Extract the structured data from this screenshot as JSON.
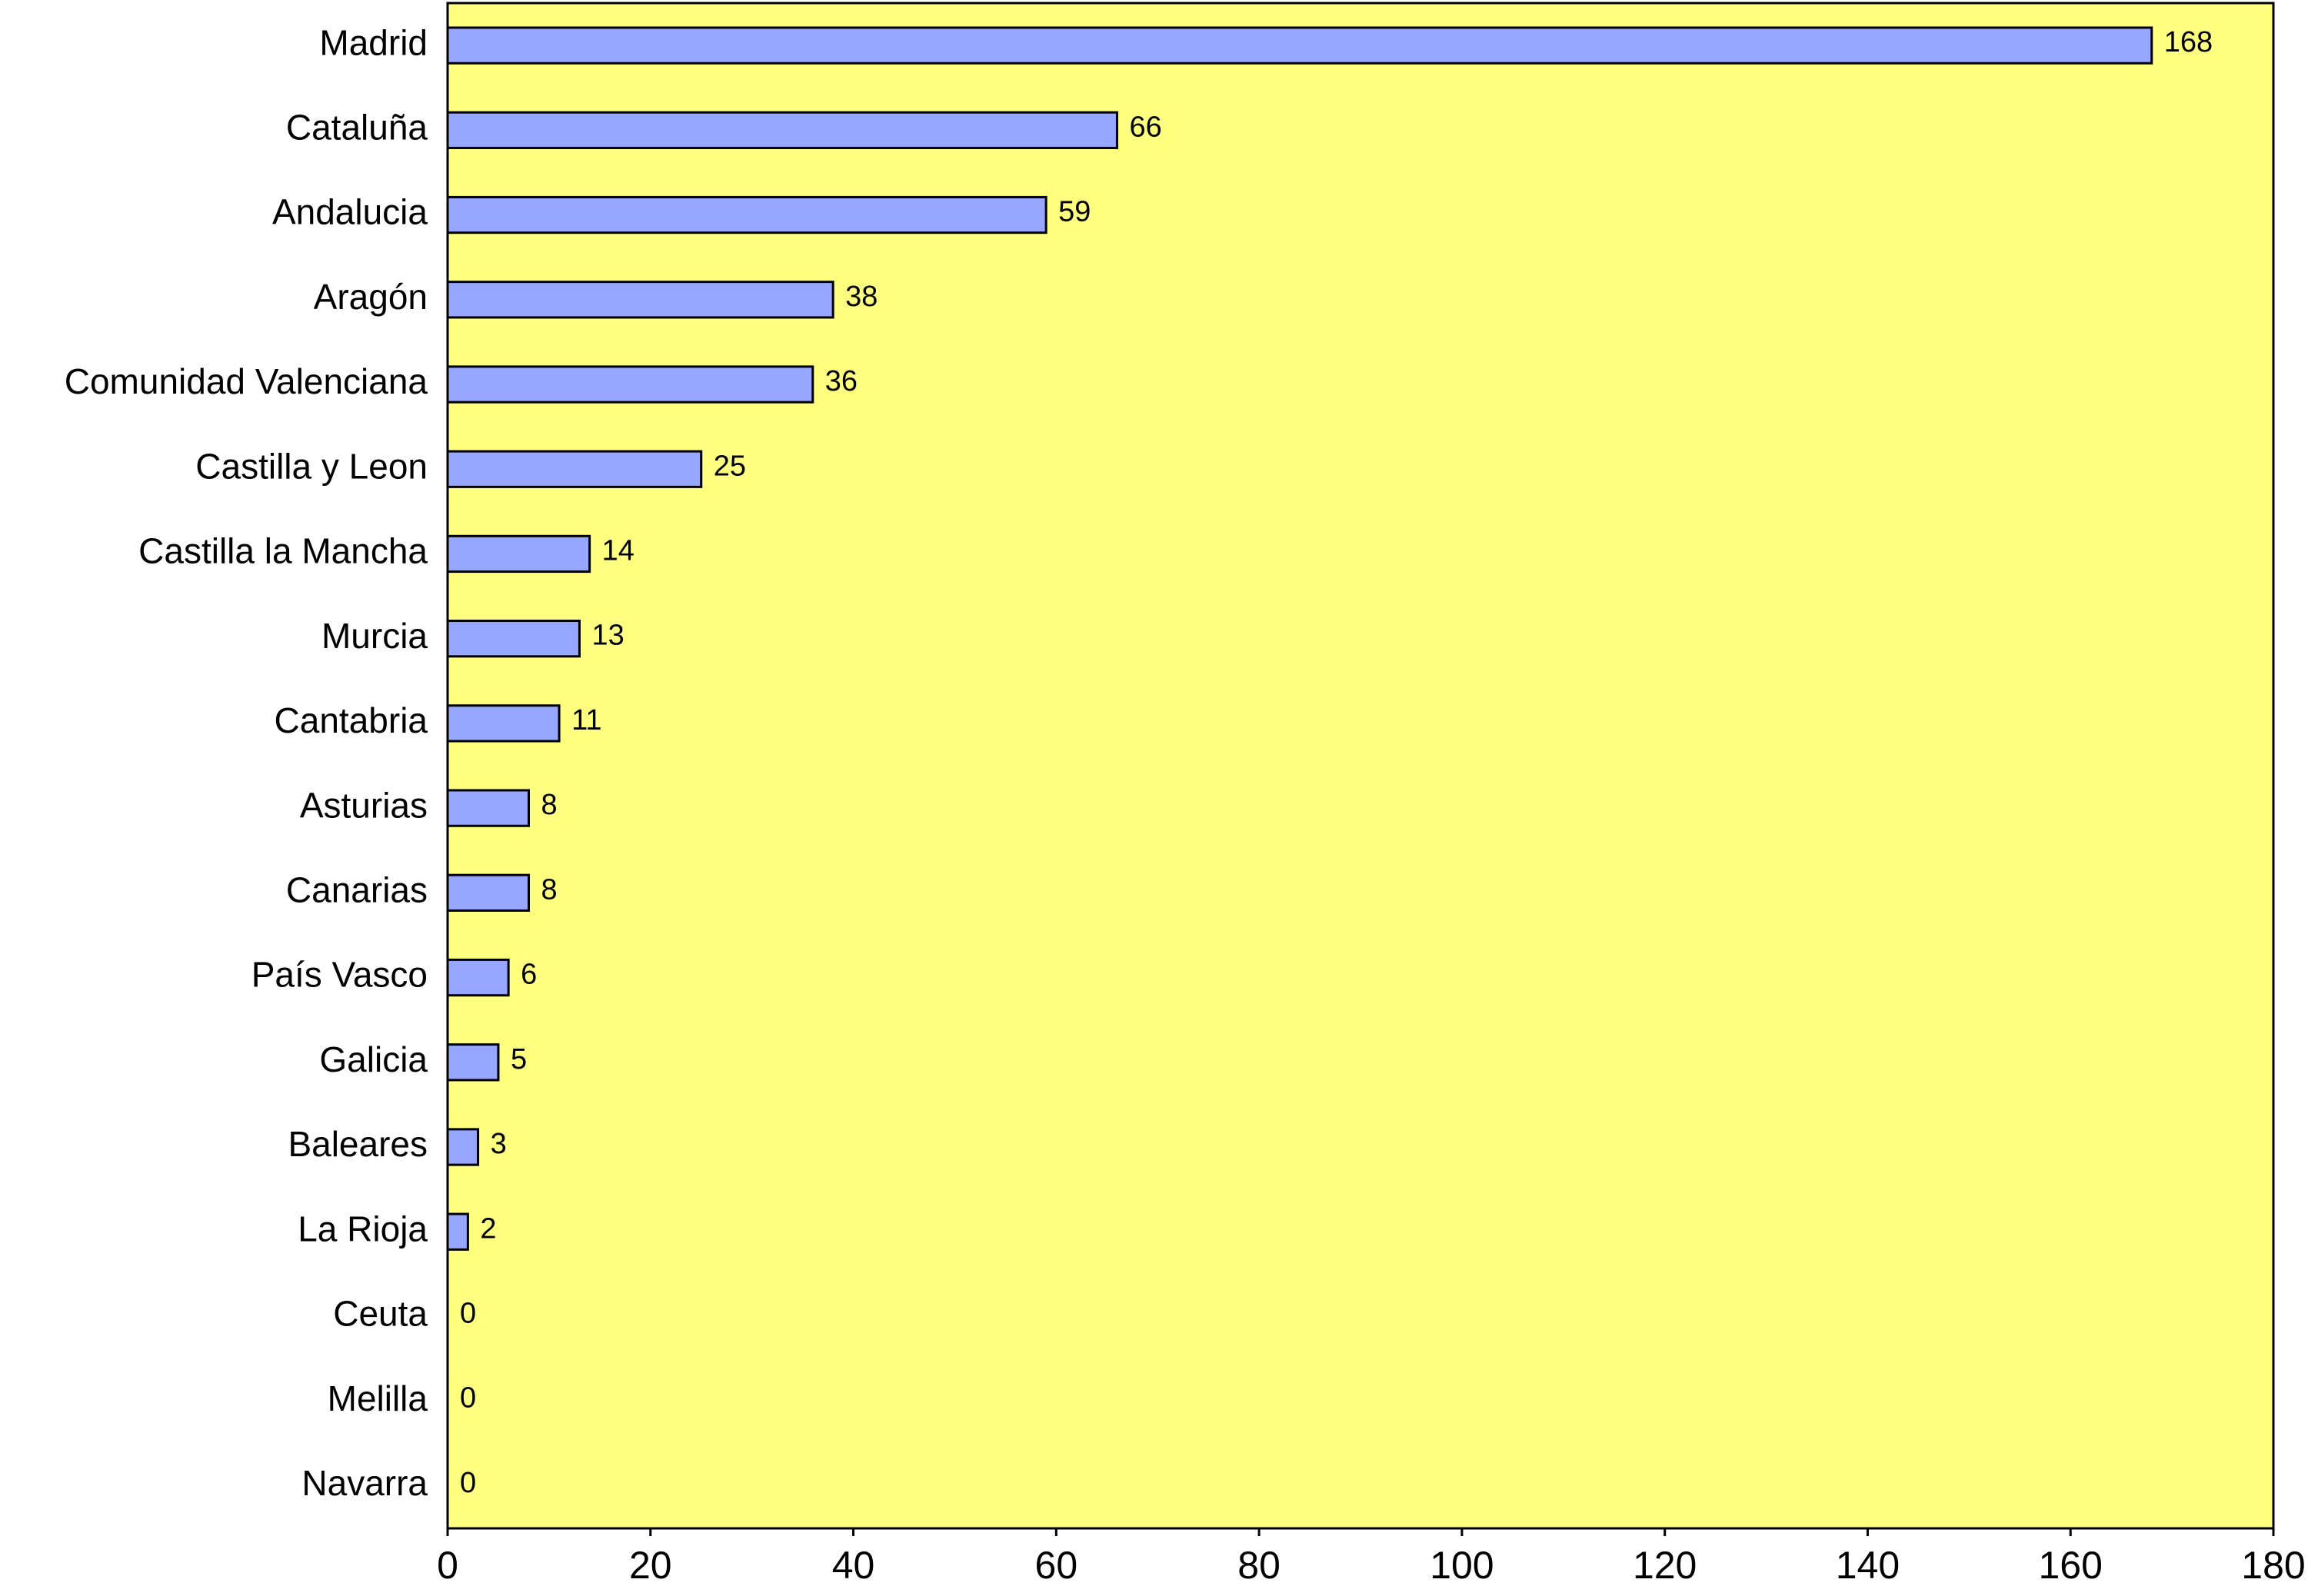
{
  "chart_data": {
    "type": "bar",
    "orientation": "horizontal",
    "categories": [
      "Madrid",
      "Cataluña",
      "Andalucia",
      "Aragón",
      "Comunidad Valenciana",
      "Castilla y Leon",
      "Castilla la Mancha",
      "Murcia",
      "Cantabria",
      "Asturias",
      "Canarias",
      "País Vasco",
      "Galicia",
      "Baleares",
      "La Rioja",
      "Ceuta",
      "Melilla",
      "Navarra"
    ],
    "values": [
      168,
      66,
      59,
      38,
      36,
      25,
      14,
      13,
      11,
      8,
      8,
      6,
      5,
      3,
      2,
      0,
      0,
      0
    ],
    "color": "#97a6ff",
    "background": "#ffff80",
    "xlim": [
      0,
      180
    ],
    "xticks": [
      0,
      20,
      40,
      60,
      80,
      100,
      120,
      140,
      160,
      180
    ],
    "grid": false
  }
}
